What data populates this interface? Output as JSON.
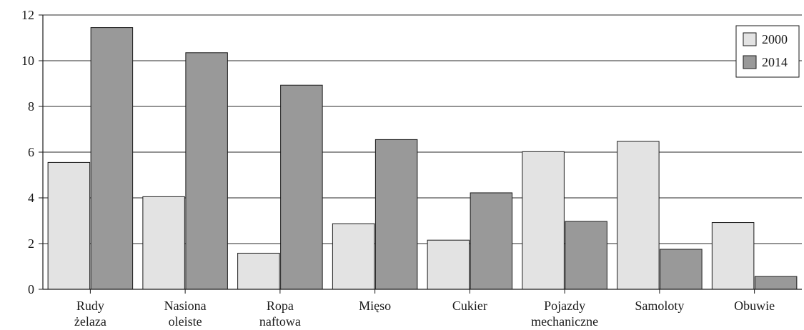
{
  "chart_data": {
    "type": "bar",
    "title": "",
    "xlabel": "",
    "ylabel": "",
    "ylim": [
      0,
      12
    ],
    "yticks": [
      0,
      2,
      4,
      6,
      8,
      10,
      12
    ],
    "grid": true,
    "legend_position": "top-right",
    "categories": [
      [
        "Rudy",
        "żelaza"
      ],
      [
        "Nasiona",
        "oleiste"
      ],
      [
        "Ropa",
        "naftowa"
      ],
      [
        "Mięso"
      ],
      [
        "Cukier"
      ],
      [
        "Pojazdy",
        "mechaniczne"
      ],
      [
        "Samoloty"
      ],
      [
        "Obuwie"
      ]
    ],
    "series": [
      {
        "name": "2000",
        "color": "#e3e3e3",
        "values": [
          5.55,
          4.05,
          1.58,
          2.87,
          2.15,
          6.02,
          6.47,
          2.92
        ]
      },
      {
        "name": "2014",
        "color": "#999999",
        "values": [
          11.45,
          10.35,
          8.93,
          6.55,
          4.22,
          2.97,
          1.75,
          0.56
        ]
      }
    ]
  }
}
